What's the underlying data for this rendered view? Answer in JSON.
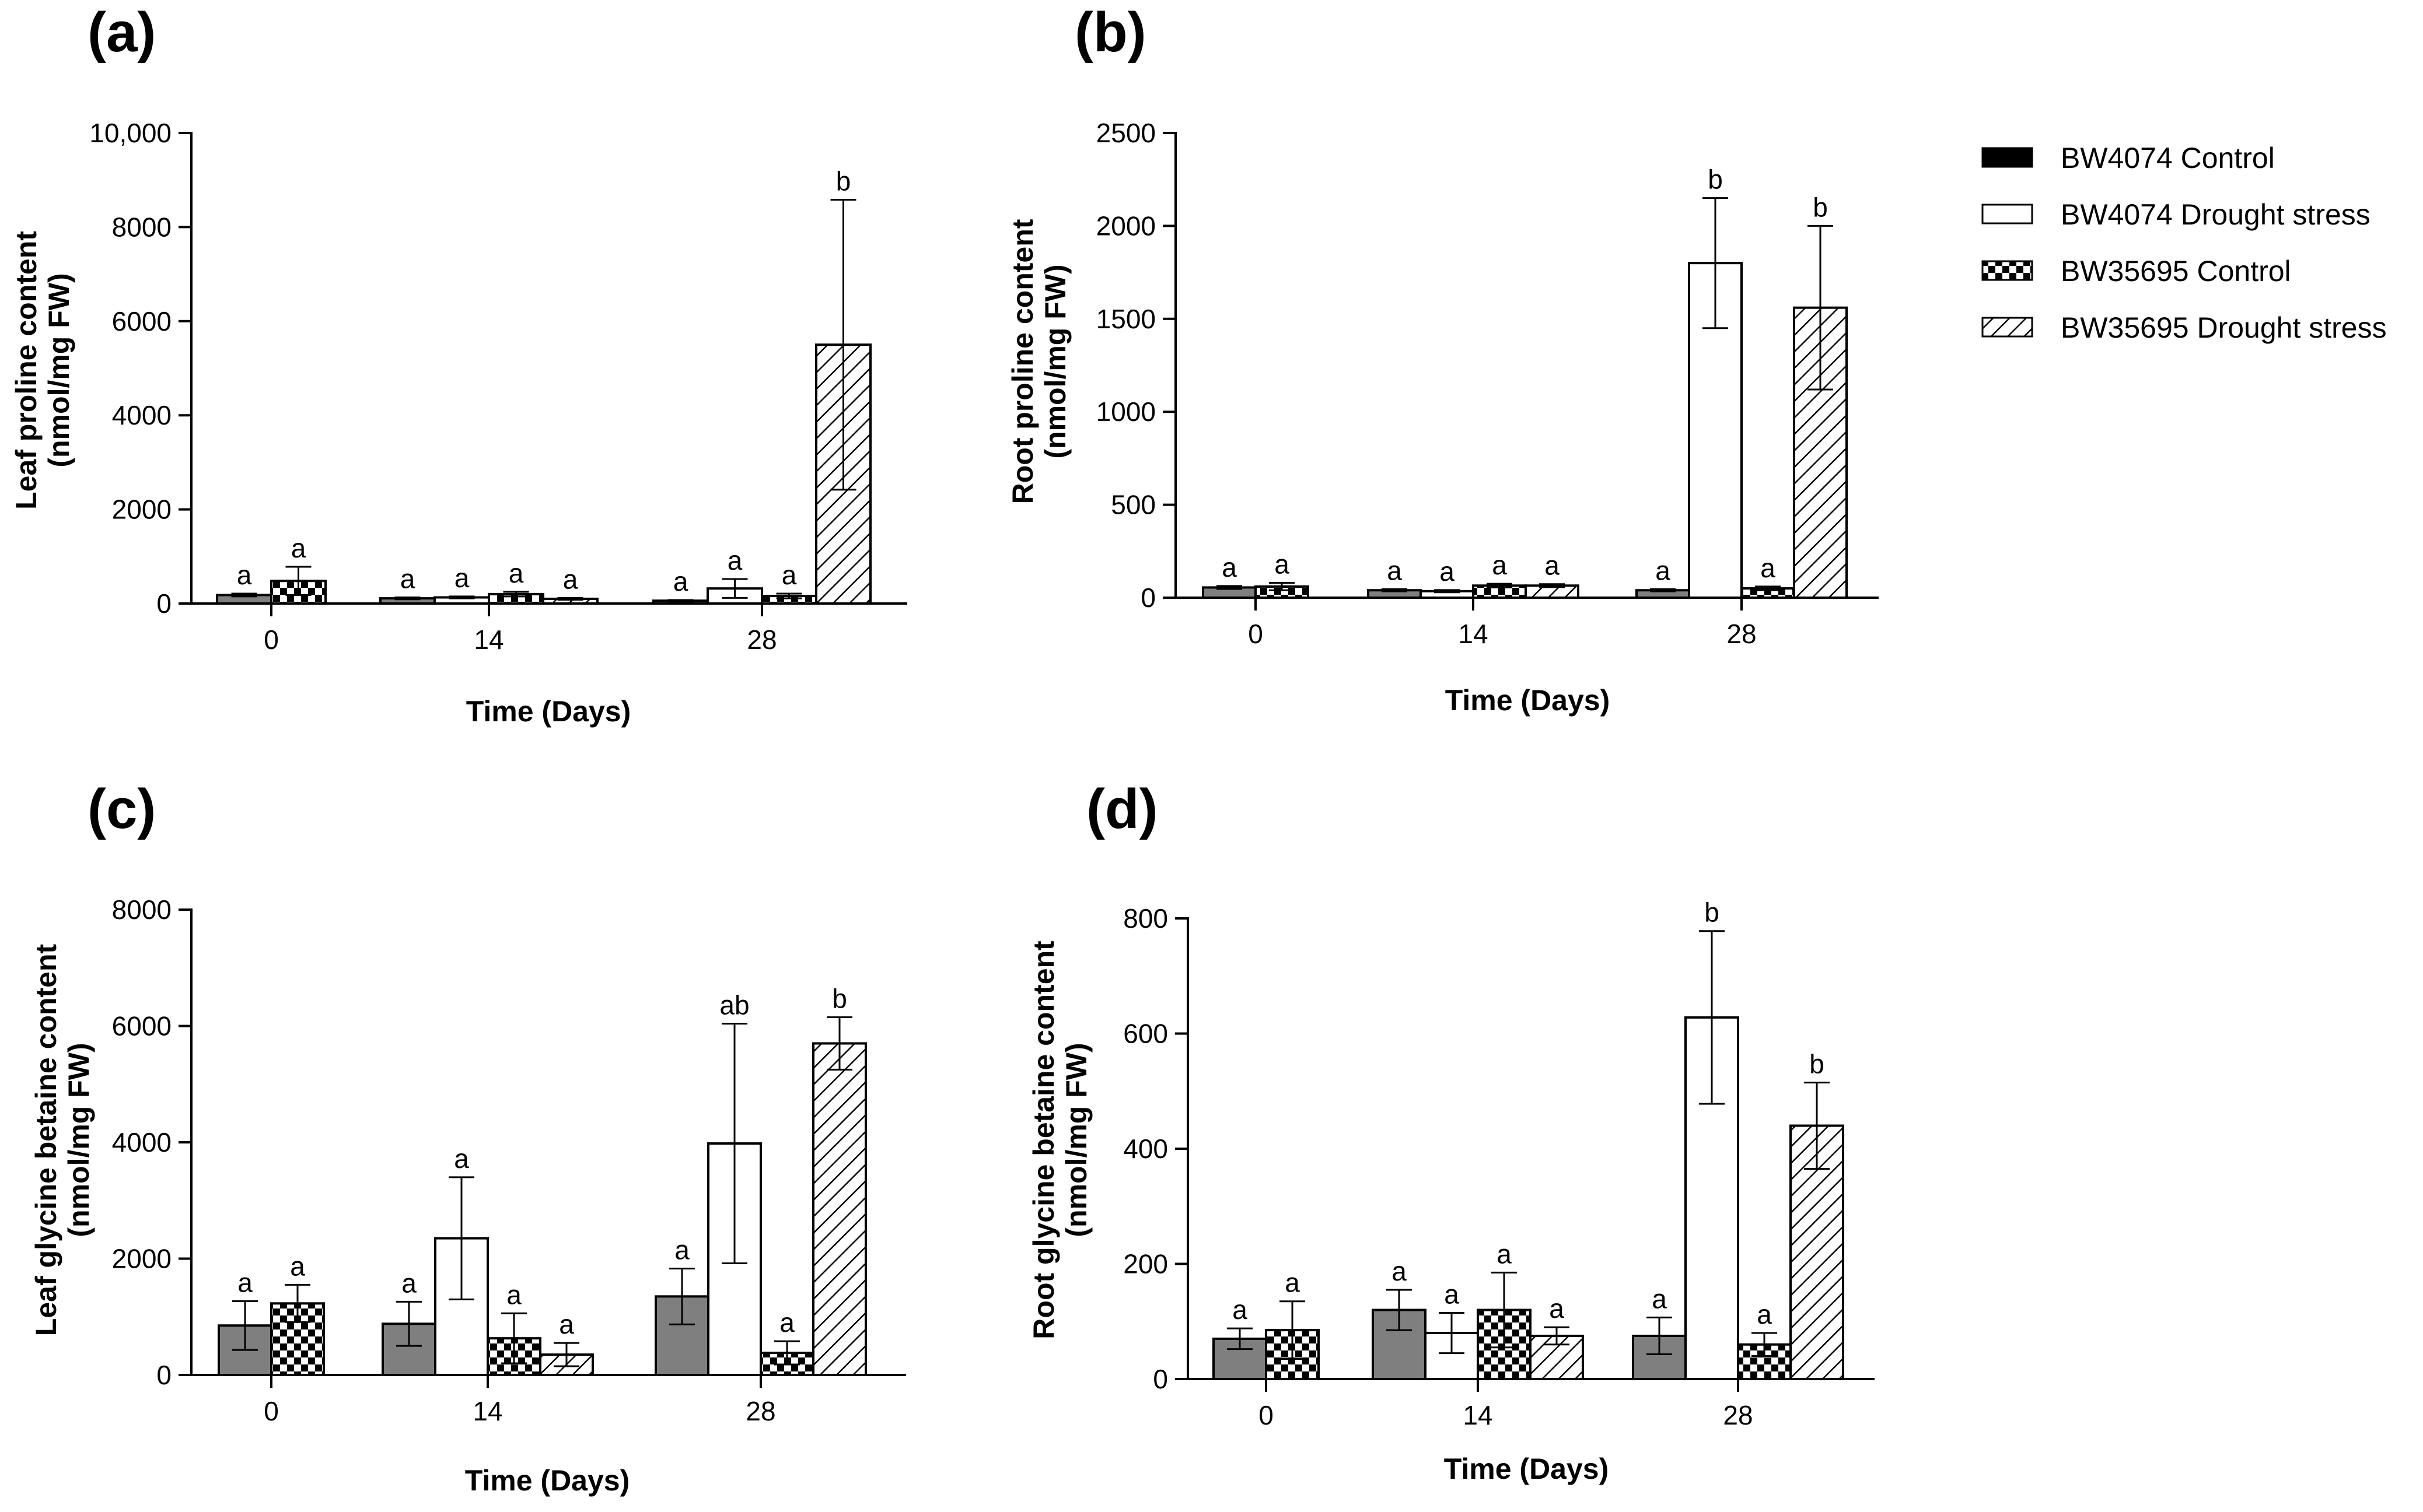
{
  "legend": [
    {
      "name": "BW4074 Control",
      "fill": "gray"
    },
    {
      "name": "BW4074 Drought stress",
      "fill": "white"
    },
    {
      "name": "BW35695 Control",
      "fill": "checker"
    },
    {
      "name": "BW35695 Drought stress",
      "fill": "hatch"
    }
  ],
  "colors": {
    "control_gray": "#7f7f7f",
    "ink": "#000000",
    "background": "#ffffff"
  },
  "chart_data": [
    {
      "panel": "(a)",
      "type": "bar",
      "xlabel": "Time (Days)",
      "ylabel_line1": "Leaf proline content",
      "ylabel_line2": "(nmol/mg FW)",
      "ylim": [
        0,
        10000
      ],
      "yticks": [
        0,
        2000,
        4000,
        6000,
        8000,
        10000
      ],
      "yticklabels": [
        "0",
        "2000",
        "4000",
        "6000",
        "8000",
        "10,000"
      ],
      "categories": [
        "0",
        "14",
        "28"
      ],
      "series": [
        {
          "name": "BW4074 Control",
          "values": [
            180,
            110,
            60
          ],
          "errors": [
            30,
            20,
            15
          ],
          "letters": [
            "a",
            "a",
            "a"
          ]
        },
        {
          "name": "BW4074 Drought stress",
          "values": [
            null,
            130,
            320
          ],
          "errors": [
            null,
            20,
            200
          ],
          "letters": [
            null,
            "a",
            "a"
          ]
        },
        {
          "name": "BW35695 Control",
          "values": [
            480,
            200,
            160
          ],
          "errors": [
            300,
            50,
            50
          ],
          "letters": [
            "a",
            "a",
            "a"
          ]
        },
        {
          "name": "BW35695 Drought stress",
          "values": [
            null,
            100,
            5500
          ],
          "errors": [
            null,
            20,
            3080
          ],
          "letters": [
            null,
            "a",
            "b"
          ]
        }
      ]
    },
    {
      "panel": "(b)",
      "type": "bar",
      "xlabel": "Time (Days)",
      "ylabel_line1": "Root proline content",
      "ylabel_line2": "(nmol/mg FW)",
      "ylim": [
        0,
        2500
      ],
      "yticks": [
        0,
        500,
        1000,
        1500,
        2000,
        2500
      ],
      "yticklabels": [
        "0",
        "500",
        "1000",
        "1500",
        "2000",
        "2500"
      ],
      "categories": [
        "0",
        "14",
        "28"
      ],
      "series": [
        {
          "name": "BW4074 Control",
          "values": [
            55,
            40,
            40
          ],
          "errors": [
            8,
            6,
            6
          ],
          "letters": [
            "a",
            "a",
            "a"
          ]
        },
        {
          "name": "BW4074 Drought stress",
          "values": [
            null,
            35,
            1800
          ],
          "errors": [
            null,
            6,
            350
          ],
          "letters": [
            null,
            "a",
            "b"
          ]
        },
        {
          "name": "BW35695 Control",
          "values": [
            60,
            65,
            50
          ],
          "errors": [
            20,
            10,
            10
          ],
          "letters": [
            "a",
            "a",
            "a"
          ]
        },
        {
          "name": "BW35695 Drought stress",
          "values": [
            null,
            65,
            1560
          ],
          "errors": [
            null,
            8,
            440
          ],
          "letters": [
            null,
            "a",
            "b"
          ]
        }
      ]
    },
    {
      "panel": "(c)",
      "type": "bar",
      "xlabel": "Time (Days)",
      "ylabel_line1": "Leaf glycine betaine content",
      "ylabel_line2": "(nmol/mg FW)",
      "ylim": [
        0,
        8000
      ],
      "yticks": [
        0,
        2000,
        4000,
        6000,
        8000
      ],
      "yticklabels": [
        "0",
        "2000",
        "4000",
        "6000",
        "8000"
      ],
      "categories": [
        "0",
        "14",
        "28"
      ],
      "series": [
        {
          "name": "BW4074 Control",
          "values": [
            850,
            880,
            1350
          ],
          "errors": [
            420,
            380,
            480
          ],
          "letters": [
            "a",
            "a",
            "a"
          ]
        },
        {
          "name": "BW4074 Drought stress",
          "values": [
            null,
            2350,
            3980
          ],
          "errors": [
            null,
            1050,
            2060
          ],
          "letters": [
            null,
            "a",
            "ab"
          ]
        },
        {
          "name": "BW35695 Control",
          "values": [
            1230,
            630,
            380
          ],
          "errors": [
            320,
            430,
            200
          ],
          "letters": [
            "a",
            "a",
            "a"
          ]
        },
        {
          "name": "BW35695 Drought stress",
          "values": [
            null,
            350,
            5700
          ],
          "errors": [
            null,
            200,
            450
          ],
          "letters": [
            null,
            "a",
            "b"
          ]
        }
      ]
    },
    {
      "panel": "(d)",
      "type": "bar",
      "xlabel": "Time (Days)",
      "ylabel_line1": "Root glycine betaine content",
      "ylabel_line2": "(nmol/mg FW)",
      "ylim": [
        0,
        800
      ],
      "yticks": [
        0,
        200,
        400,
        600,
        800
      ],
      "yticklabels": [
        "0",
        "200",
        "400",
        "600",
        "800"
      ],
      "categories": [
        "0",
        "14",
        "28"
      ],
      "series": [
        {
          "name": "BW4074 Control",
          "values": [
            70,
            120,
            75
          ],
          "errors": [
            18,
            35,
            32
          ],
          "letters": [
            "a",
            "a",
            "a"
          ]
        },
        {
          "name": "BW4074 Drought stress",
          "values": [
            null,
            80,
            628
          ],
          "errors": [
            null,
            35,
            150
          ],
          "letters": [
            null,
            "a",
            "b"
          ]
        },
        {
          "name": "BW35695 Control",
          "values": [
            85,
            120,
            60
          ],
          "errors": [
            50,
            65,
            20
          ],
          "letters": [
            "a",
            "a",
            "a"
          ]
        },
        {
          "name": "BW35695 Drought stress",
          "values": [
            null,
            75,
            440
          ],
          "errors": [
            null,
            15,
            75
          ],
          "letters": [
            null,
            "a",
            "b"
          ]
        }
      ]
    }
  ]
}
